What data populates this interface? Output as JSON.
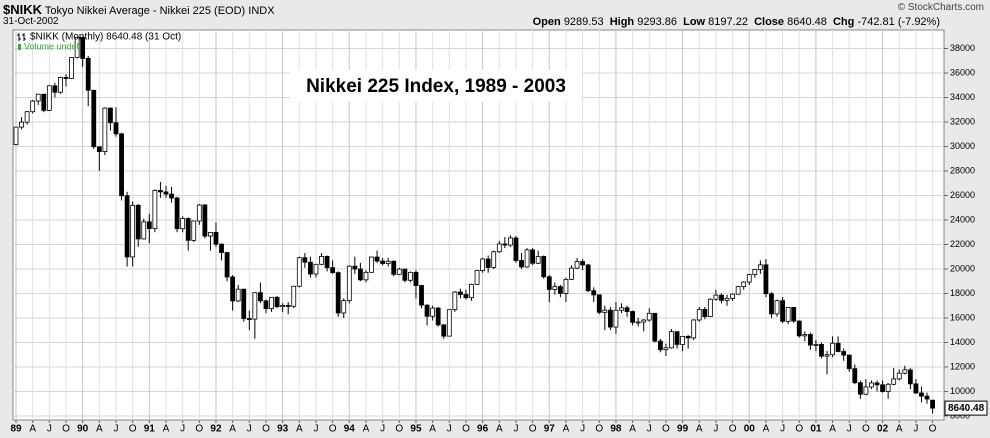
{
  "chart_data": {
    "type": "candlestick",
    "title": "Nikkei 225 Index, 1989 - 2003",
    "symbol": "$NIKK",
    "name": "Tokyo Nikkei Average - Nikkei 225 (EOD)",
    "exchange": "INDX",
    "date": "31-Oct-2002",
    "credit": "© StockCharts.com",
    "legend": "$NIKK (Monthly) 8640.48 (31 Oct)",
    "volume_note": "Volume undef",
    "header_labels": {
      "open": "Open",
      "high": "High",
      "low": "Low",
      "close": "Close",
      "chg": "Chg"
    },
    "change": -742.81,
    "change_pct": "(-7.92%)",
    "categories": [
      "89",
      null,
      null,
      "A",
      null,
      null,
      "J",
      null,
      null,
      "O",
      null,
      null,
      "90",
      null,
      null,
      "A",
      null,
      null,
      "J",
      null,
      null,
      "O",
      null,
      null,
      "91",
      null,
      null,
      "A",
      null,
      null,
      "J",
      null,
      null,
      "O",
      null,
      null,
      "92",
      null,
      null,
      "A",
      null,
      null,
      "J",
      null,
      null,
      "O",
      null,
      null,
      "93",
      null,
      null,
      "A",
      null,
      null,
      "J",
      null,
      null,
      "O",
      null,
      null,
      "94",
      null,
      null,
      "A",
      null,
      null,
      "J",
      null,
      null,
      "O",
      null,
      null,
      "95",
      null,
      null,
      "A",
      null,
      null,
      "J",
      null,
      null,
      "O",
      null,
      null,
      "96",
      null,
      null,
      "A",
      null,
      null,
      "J",
      null,
      null,
      "O",
      null,
      null,
      "97",
      null,
      null,
      "A",
      null,
      null,
      "J",
      null,
      null,
      "O",
      null,
      null,
      "98",
      null,
      null,
      "A",
      null,
      null,
      "J",
      null,
      null,
      "O",
      null,
      null,
      "99",
      null,
      null,
      "A",
      null,
      null,
      "J",
      null,
      null,
      "O",
      null,
      null,
      "00",
      null,
      null,
      "A",
      null,
      null,
      "J",
      null,
      null,
      "O",
      null,
      null,
      "01",
      null,
      null,
      "A",
      null,
      null,
      "J",
      null,
      null,
      "O",
      null,
      null,
      "02",
      null,
      null,
      "A",
      null,
      null,
      "J",
      null,
      null,
      "O"
    ],
    "open": [
      30159,
      31581,
      31985,
      32839,
      33713,
      34266,
      32948,
      34954,
      34431,
      35636,
      35549,
      37268,
      38916,
      37189,
      34591,
      29980,
      29584,
      33131,
      31940,
      31036,
      25978,
      20984,
      25194,
      22454,
      23849,
      23293,
      26409,
      26292,
      26111,
      25790,
      23291,
      24121,
      22336,
      23916,
      25222,
      22687,
      22984,
      22023,
      21339,
      19346,
      17391,
      18348,
      15952,
      15910,
      18061,
      17399,
      16767,
      17684,
      16925,
      17024,
      16953,
      18591,
      20919,
      20552,
      19590,
      20380,
      21027,
      20106,
      19703,
      16408,
      17417,
      20229,
      19997,
      19112,
      19725,
      20974,
      20644,
      20448,
      20629,
      19564,
      19990,
      19076,
      19723,
      18650,
      17053,
      16140,
      16807,
      15437,
      14517,
      16678,
      18117,
      17913,
      17655,
      18744,
      19868,
      20813,
      20125,
      21407,
      22041,
      21956,
      22531,
      20693,
      20167,
      21556,
      20466,
      21020,
      19361,
      18330,
      18557,
      18003,
      19151,
      20068,
      20605,
      20331,
      18229,
      17888,
      16459,
      16636,
      15259,
      16628,
      16831,
      16527,
      15641,
      15671,
      15831,
      16379,
      14108,
      13406,
      13565,
      14883,
      13842,
      14499,
      14368,
      15837,
      16701,
      16112,
      17530,
      17862,
      17437,
      17605,
      17942,
      18558,
      18934,
      19540,
      19960,
      20337,
      17974,
      16332,
      17411,
      15727,
      16861,
      15747,
      14540,
      14649,
      13785,
      13843,
      12883,
      12999,
      13934,
      13262,
      12969,
      11860,
      10713,
      9774,
      10366,
      10697,
      10542,
      9997,
      10587,
      11024,
      11492,
      11763,
      10621,
      9877,
      9619,
      9289.53
    ],
    "high": [
      31600,
      32400,
      32900,
      33800,
      34300,
      34300,
      35000,
      35200,
      35700,
      35900,
      37300,
      38957,
      38700,
      37400,
      34600,
      30000,
      33200,
      33200,
      33200,
      31100,
      26300,
      25500,
      25300,
      24100,
      24500,
      26500,
      27100,
      26800,
      26700,
      25900,
      24300,
      24200,
      23900,
      25300,
      25300,
      23000,
      23800,
      22100,
      21400,
      19500,
      18700,
      18400,
      16600,
      18100,
      18900,
      17500,
      17700,
      17800,
      17200,
      17300,
      18600,
      21000,
      21300,
      21000,
      20400,
      21300,
      21100,
      20700,
      19800,
      17600,
      20300,
      21000,
      20500,
      19900,
      21000,
      21500,
      20900,
      20900,
      20700,
      20100,
      20000,
      19800,
      19900,
      18700,
      17100,
      17000,
      16900,
      15500,
      16700,
      18200,
      18400,
      18300,
      18800,
      19900,
      20900,
      21100,
      21500,
      22300,
      22600,
      22750,
      22700,
      21300,
      21700,
      21700,
      21500,
      21100,
      19500,
      18900,
      18700,
      19300,
      20300,
      20900,
      20800,
      20400,
      18500,
      17900,
      17000,
      16900,
      17300,
      17200,
      17000,
      16600,
      16000,
      15900,
      16800,
      16400,
      14300,
      13900,
      15100,
      14900,
      14500,
      14600,
      15900,
      16900,
      16900,
      17600,
      18300,
      18000,
      17900,
      18000,
      18600,
      19000,
      19600,
      20000,
      20700,
      20800,
      18100,
      17500,
      17700,
      16900,
      16900,
      15800,
      14900,
      14800,
      14200,
      14000,
      13300,
      14500,
      14500,
      13500,
      13000,
      12200,
      10900,
      11000,
      10900,
      10900,
      10900,
      10700,
      11900,
      11800,
      12100,
      11900,
      11000,
      10400,
      9900,
      9293.86
    ],
    "low": [
      30100,
      31400,
      31800,
      32700,
      33400,
      32800,
      32900,
      34000,
      34300,
      34900,
      35500,
      37200,
      36500,
      33300,
      29800,
      28000,
      29300,
      31300,
      30800,
      25600,
      20200,
      20200,
      21800,
      22400,
      22100,
      23000,
      25800,
      25800,
      25400,
      23000,
      23000,
      21500,
      22200,
      23600,
      22500,
      21500,
      21800,
      20700,
      19000,
      16600,
      17300,
      15700,
      15000,
      14300,
      17200,
      16400,
      16500,
      16800,
      16500,
      16300,
      16800,
      18500,
      20100,
      19300,
      19300,
      20300,
      19800,
      19600,
      16100,
      16000,
      17200,
      19600,
      19000,
      18900,
      19700,
      20500,
      20300,
      20200,
      19400,
      19500,
      18900,
      18900,
      17600,
      16800,
      15400,
      15800,
      15300,
      14300,
      14500,
      16500,
      17600,
      17500,
      17400,
      18700,
      19700,
      19700,
      20000,
      21300,
      21700,
      21800,
      20500,
      20000,
      20100,
      20300,
      20400,
      19200,
      17300,
      17900,
      17700,
      17300,
      19100,
      20000,
      19900,
      18100,
      17300,
      16300,
      15000,
      15000,
      14700,
      16400,
      16100,
      15400,
      15300,
      14900,
      15700,
      14000,
      13200,
      12900,
      13500,
      13500,
      13300,
      13500,
      14200,
      15700,
      15900,
      16100,
      17400,
      17200,
      17000,
      17400,
      17900,
      18300,
      18700,
      19300,
      19600,
      17700,
      16000,
      16100,
      15600,
      15500,
      15600,
      14400,
      14100,
      13400,
      13300,
      12700,
      11400,
      12800,
      13200,
      12500,
      11600,
      10600,
      9400,
      9700,
      10200,
      10000,
      9900,
      9400,
      10500,
      10900,
      11400,
      10200,
      9800,
      9100,
      9000,
      8197.22
    ],
    "close": [
      31581,
      31985,
      32839,
      33713,
      34266,
      32948,
      34954,
      34431,
      35636,
      35549,
      37268,
      38916,
      37189,
      34591,
      29980,
      29584,
      33131,
      31940,
      31036,
      25978,
      20984,
      25194,
      22454,
      23849,
      23293,
      26409,
      26292,
      26111,
      25790,
      23291,
      24121,
      22336,
      23916,
      25222,
      22687,
      22984,
      22023,
      21339,
      19346,
      17391,
      18348,
      15952,
      15910,
      18061,
      17399,
      16767,
      17684,
      16925,
      17024,
      16953,
      18591,
      20919,
      20552,
      19590,
      20380,
      21027,
      20106,
      19703,
      16408,
      17417,
      20229,
      19997,
      19112,
      19725,
      20974,
      20644,
      20448,
      20629,
      19564,
      19990,
      19076,
      19723,
      18650,
      17053,
      16140,
      16807,
      15437,
      14517,
      16678,
      18117,
      17913,
      17655,
      18744,
      19868,
      20813,
      20125,
      21407,
      22041,
      21956,
      22531,
      20693,
      20167,
      21556,
      20466,
      21020,
      19361,
      18330,
      18557,
      18003,
      19151,
      20068,
      20605,
      20331,
      18229,
      17888,
      16459,
      16636,
      15259,
      16628,
      16831,
      16527,
      15641,
      15671,
      15831,
      16379,
      14108,
      13406,
      13565,
      14883,
      13842,
      14499,
      14368,
      15837,
      16701,
      16112,
      17530,
      17862,
      17437,
      17605,
      17942,
      18558,
      18934,
      19540,
      19960,
      20337,
      17974,
      16332,
      17411,
      15727,
      16861,
      15747,
      14540,
      14649,
      13785,
      13843,
      12883,
      12999,
      13934,
      13262,
      12969,
      11860,
      10713,
      9774,
      10366,
      10697,
      10542,
      9997,
      10587,
      11024,
      11492,
      11763,
      10621,
      9877,
      9619,
      9383,
      8640.48
    ],
    "ylim": [
      7670,
      39510
    ],
    "yticks": [
      8000,
      10000,
      12000,
      14000,
      16000,
      18000,
      20000,
      22000,
      24000,
      26000,
      28000,
      30000,
      32000,
      34000,
      36000,
      38000
    ],
    "grid": true,
    "up_color": "#ffffff",
    "down_color": "#000000",
    "line_color": "#000000"
  }
}
